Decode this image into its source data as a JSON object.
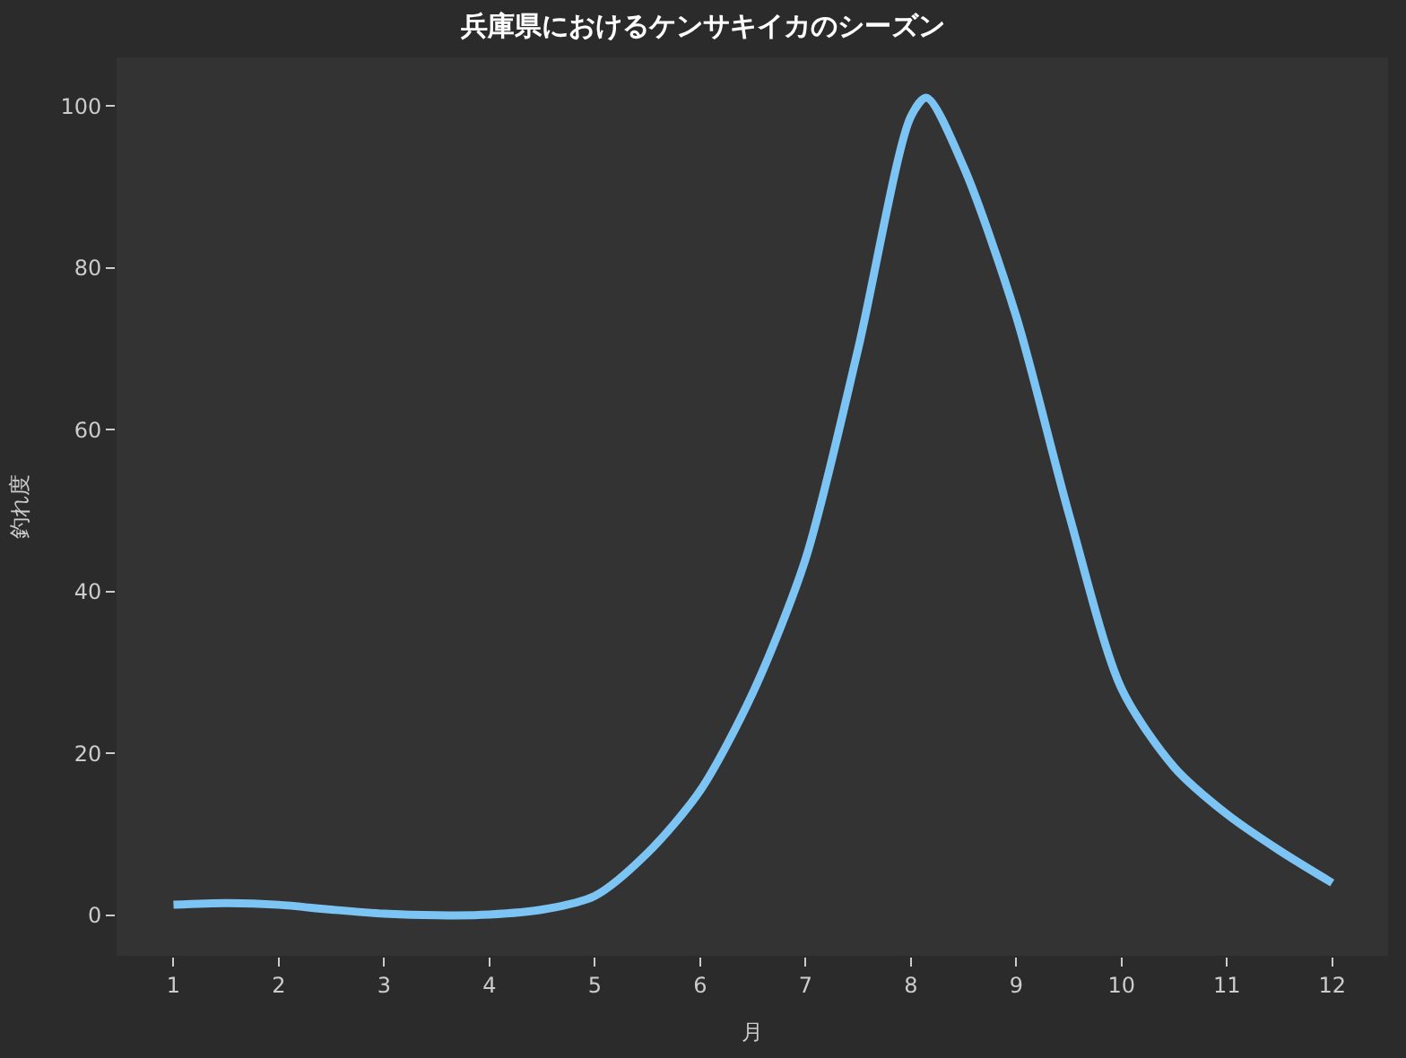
{
  "chart_data": {
    "type": "line",
    "title": "兵庫県におけるケンサキイカのシーズン",
    "xlabel": "月",
    "ylabel": "釣れ度",
    "x": [
      1,
      1.5,
      2,
      2.5,
      3,
      3.5,
      4,
      4.5,
      5,
      5.5,
      6,
      6.5,
      7,
      7.5,
      8,
      8.15,
      8.5,
      9,
      9.5,
      10,
      10.5,
      11,
      11.5,
      12
    ],
    "series": [
      {
        "color": "#7cc4f4",
        "values": [
          1.3,
          1.5,
          1.3,
          0.7,
          0.2,
          0,
          0.1,
          0.7,
          2.4,
          7.7,
          15.4,
          27.5,
          44,
          70,
          98.7,
          101,
          92.5,
          74,
          49.6,
          28,
          18.3,
          12.5,
          8,
          4
        ]
      }
    ],
    "xlim": [
      0.46,
      12.53
    ],
    "xticks": [
      1,
      2,
      3,
      4,
      5,
      6,
      7,
      8,
      9,
      10,
      11,
      12
    ],
    "ylim": [
      -5,
      106
    ],
    "yticks": [
      0,
      20,
      40,
      60,
      80,
      100
    ],
    "grid": false,
    "legend": false,
    "marker": "none",
    "line_style": "solid"
  }
}
